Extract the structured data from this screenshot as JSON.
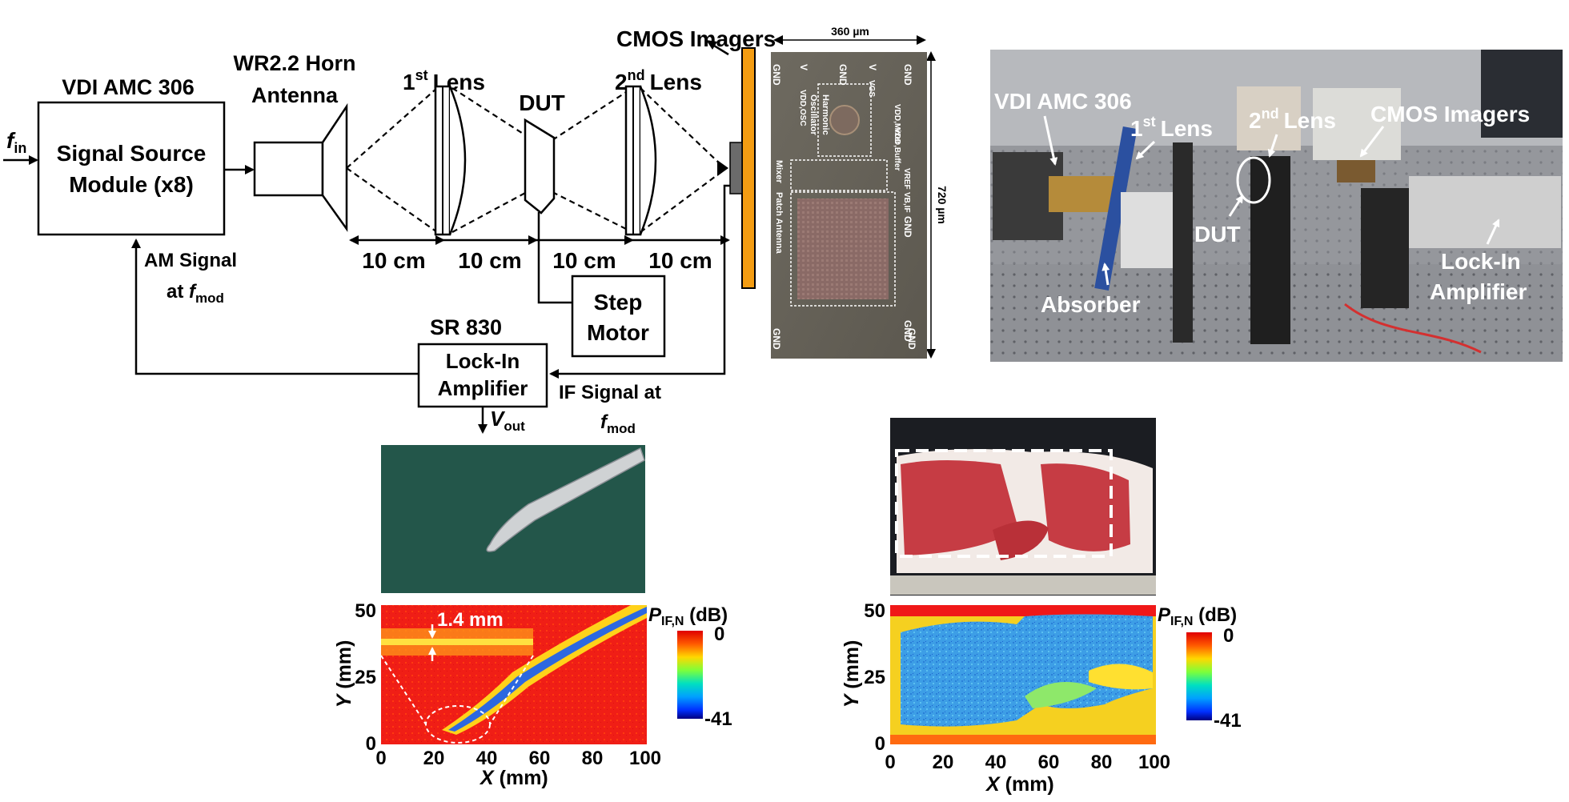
{
  "diagram": {
    "input_signal": {
      "symbol": "f",
      "sub": "in"
    },
    "source": {
      "title": "VDI AMC 306",
      "line1": "Signal Source",
      "line2": "Module (x8)"
    },
    "horn": {
      "line1": "WR2.2 Horn",
      "line2": "Antenna"
    },
    "lens1": {
      "num": "1",
      "sup": "st",
      "word": "Lens"
    },
    "dut": "DUT",
    "lens2": {
      "num": "2",
      "sup": "nd",
      "word": "Lens"
    },
    "imagers": "CMOS Imagers",
    "spacings": [
      "10 cm",
      "10 cm",
      "10 cm",
      "10 cm"
    ],
    "step_motor": {
      "line1": "Step",
      "line2": "Motor"
    },
    "lockin": {
      "title": "SR 830",
      "line1": "Lock-In",
      "line2": "Amplifier"
    },
    "am_signal": {
      "line1": "AM Signal",
      "line2_prefix": "at ",
      "symbol": "f",
      "sub": "mod"
    },
    "if_signal": {
      "line1": "IF Signal at",
      "symbol": "f",
      "sub": "mod"
    },
    "vout": {
      "symbol": "V",
      "sub": "out"
    }
  },
  "chip": {
    "width_label": "360 µm",
    "height_label": "720 µm",
    "pads_top": [
      "GND",
      "V",
      "GND",
      "V",
      "GND"
    ],
    "pad_labels_rotated": [
      "VDD,Mixer",
      "VDD,Buffer",
      "VREF",
      "VB,IF"
    ],
    "pads_right": [
      "GND",
      "GND"
    ],
    "pads_bottom": [
      "GND",
      "GND"
    ],
    "blocks": [
      "Harmonic",
      "Oscillator",
      "Mixer",
      "Patch Antenna"
    ],
    "osc_label": "VDD,OSC",
    "vgs_label": "VGS"
  },
  "photo_setup": {
    "labels": {
      "source": "VDI AMC 306",
      "lens1_num": "1",
      "lens1_sup": "st",
      "lens1_word": "Lens",
      "lens2_num": "2",
      "lens2_sup": "nd",
      "lens2_word": "Lens",
      "imagers": "CMOS Imagers",
      "dut": "DUT",
      "absorber": "Absorber",
      "lockin1": "Lock-In",
      "lockin2": "Amplifier"
    }
  },
  "heatmap_left": {
    "x_ticks": [
      "0",
      "20",
      "40",
      "60",
      "80",
      "100"
    ],
    "y_ticks": [
      "50",
      "25",
      "0"
    ],
    "xlabel_var": "X",
    "xlabel_unit": " (mm)",
    "ylabel_var": "Y",
    "ylabel_unit": " (mm)",
    "colorbar_var": "P",
    "colorbar_sub": "IF,N",
    "colorbar_unit": " (dB)",
    "colorbar_max": "0",
    "colorbar_min": "-41",
    "annotation": "1.4 mm"
  },
  "heatmap_right": {
    "x_ticks": [
      "0",
      "20",
      "40",
      "60",
      "80",
      "100"
    ],
    "y_ticks": [
      "50",
      "25",
      "0"
    ],
    "xlabel_var": "X",
    "xlabel_unit": " (mm)",
    "ylabel_var": "Y",
    "ylabel_unit": " (mm)",
    "colorbar_var": "P",
    "colorbar_sub": "IF,N",
    "colorbar_unit": " (dB)",
    "colorbar_max": "0",
    "colorbar_min": "-41"
  },
  "colors": {
    "imager_bar": "#f39c12",
    "heat_red": "#f01818",
    "heat_blue": "#3aa0e8",
    "meat": "#c63c44",
    "bench_green": "#23564a"
  }
}
